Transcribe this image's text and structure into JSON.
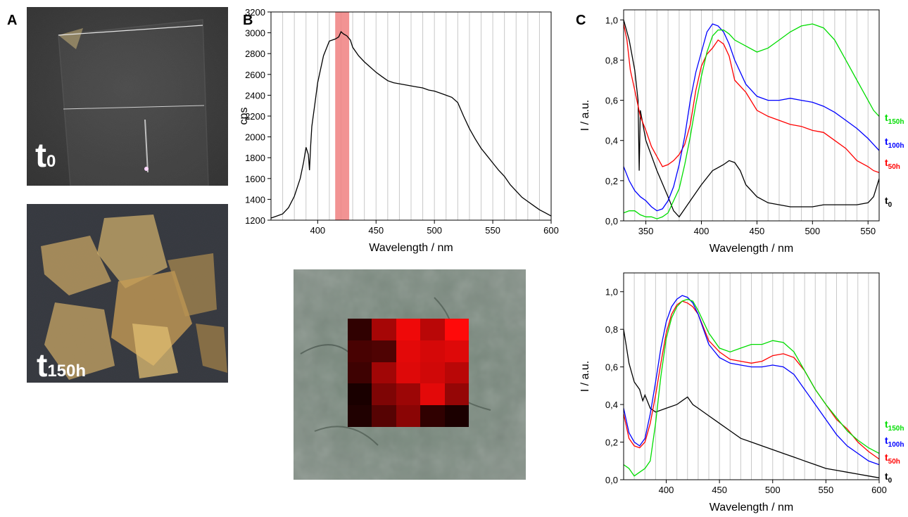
{
  "panels": {
    "a": {
      "letter": "A",
      "photo_top_label": {
        "main": "t",
        "sub": "0"
      },
      "photo_bottom_label": {
        "main": "t",
        "sub": "150h"
      }
    },
    "b": {
      "letter": "B"
    },
    "c": {
      "letter": "C"
    }
  },
  "colors": {
    "t0": "#000000",
    "t50h": "#ff0000",
    "t100h": "#0000ff",
    "t150h": "#00dd00",
    "highlight_band": "#f08080",
    "grid": "#c8c8c8"
  },
  "map": {
    "rows": 5,
    "cols": 5,
    "intensity": [
      [
        0.12,
        0.62,
        0.93,
        0.7,
        1.0
      ],
      [
        0.22,
        0.25,
        0.88,
        0.82,
        0.86
      ],
      [
        0.18,
        0.6,
        0.86,
        0.8,
        0.7
      ],
      [
        0.02,
        0.45,
        0.58,
        0.88,
        0.55
      ],
      [
        0.05,
        0.28,
        0.5,
        0.12,
        0.03
      ]
    ]
  },
  "chart_data": [
    {
      "type": "line",
      "id": "B",
      "xlabel": "Wavelength / nm",
      "ylabel": "cps",
      "xlim": [
        360,
        600
      ],
      "ylim": [
        1200,
        3200
      ],
      "xticks": [
        400,
        450,
        500,
        550,
        600
      ],
      "yticks": [
        1200,
        1400,
        1600,
        1800,
        2000,
        2200,
        2400,
        2600,
        2800,
        3000,
        3200
      ],
      "grid": "vertical every 10 nm",
      "highlight_band": [
        415,
        427
      ],
      "series": [
        {
          "key": "t0",
          "x": [
            360,
            365,
            370,
            375,
            380,
            385,
            388,
            390,
            392,
            393,
            394,
            395,
            398,
            400,
            405,
            410,
            415,
            418,
            420,
            422,
            425,
            428,
            430,
            435,
            440,
            445,
            450,
            455,
            460,
            465,
            470,
            475,
            480,
            485,
            490,
            495,
            500,
            505,
            510,
            515,
            520,
            525,
            530,
            535,
            540,
            545,
            550,
            555,
            560,
            565,
            570,
            575,
            580,
            585,
            590,
            595,
            600
          ],
          "values": [
            1220,
            1240,
            1260,
            1320,
            1430,
            1600,
            1760,
            1900,
            1830,
            1680,
            1920,
            2100,
            2350,
            2520,
            2780,
            2920,
            2940,
            2960,
            3010,
            2990,
            2970,
            2930,
            2860,
            2780,
            2720,
            2670,
            2620,
            2580,
            2540,
            2520,
            2510,
            2500,
            2490,
            2480,
            2470,
            2450,
            2440,
            2420,
            2400,
            2380,
            2330,
            2200,
            2080,
            1980,
            1890,
            1820,
            1750,
            1680,
            1620,
            1540,
            1480,
            1420,
            1380,
            1340,
            1300,
            1270,
            1240
          ]
        }
      ]
    },
    {
      "type": "line",
      "id": "C-top",
      "xlabel": "Wavelength / nm",
      "ylabel": "I / a.u.",
      "xlim": [
        330,
        560
      ],
      "ylim": [
        0,
        1.05
      ],
      "xticks": [
        350,
        400,
        450,
        500,
        550
      ],
      "xtick_labels": [
        "350",
        "400",
        "450",
        "500",
        "550"
      ],
      "yticks": [
        0,
        0.2,
        0.4,
        0.6,
        0.8,
        1.0
      ],
      "ytick_labels": [
        "0,0",
        "0,2",
        "0,4",
        "0,6",
        "0,8",
        "1,0"
      ],
      "grid": "vertical every 10 nm",
      "series": [
        {
          "key": "t0",
          "x": [
            330,
            335,
            340,
            343,
            344,
            345,
            350,
            360,
            370,
            375,
            380,
            385,
            390,
            395,
            400,
            410,
            420,
            425,
            430,
            435,
            440,
            450,
            460,
            470,
            480,
            490,
            500,
            510,
            520,
            530,
            540,
            550,
            555,
            560
          ],
          "values": [
            1.0,
            0.9,
            0.75,
            0.6,
            0.25,
            0.55,
            0.4,
            0.25,
            0.12,
            0.05,
            0.02,
            0.06,
            0.1,
            0.14,
            0.18,
            0.25,
            0.28,
            0.3,
            0.29,
            0.25,
            0.18,
            0.12,
            0.09,
            0.08,
            0.07,
            0.07,
            0.07,
            0.08,
            0.08,
            0.08,
            0.08,
            0.09,
            0.12,
            0.21
          ]
        },
        {
          "key": "t50h",
          "x": [
            330,
            333,
            336,
            340,
            345,
            350,
            355,
            360,
            365,
            370,
            375,
            380,
            385,
            390,
            395,
            400,
            405,
            410,
            415,
            420,
            425,
            430,
            440,
            450,
            460,
            470,
            480,
            490,
            500,
            510,
            520,
            530,
            540,
            550,
            555,
            560
          ],
          "values": [
            0.98,
            0.9,
            0.75,
            0.65,
            0.52,
            0.45,
            0.37,
            0.32,
            0.27,
            0.28,
            0.3,
            0.33,
            0.38,
            0.48,
            0.65,
            0.77,
            0.83,
            0.86,
            0.9,
            0.88,
            0.82,
            0.7,
            0.64,
            0.55,
            0.52,
            0.5,
            0.48,
            0.47,
            0.45,
            0.44,
            0.4,
            0.36,
            0.3,
            0.27,
            0.25,
            0.24
          ]
        },
        {
          "key": "t100h",
          "x": [
            330,
            335,
            340,
            345,
            350,
            355,
            360,
            365,
            370,
            375,
            380,
            385,
            390,
            395,
            400,
            405,
            410,
            415,
            420,
            425,
            430,
            440,
            450,
            460,
            470,
            480,
            490,
            500,
            510,
            520,
            530,
            540,
            550,
            555,
            560
          ],
          "values": [
            0.27,
            0.2,
            0.15,
            0.12,
            0.1,
            0.07,
            0.05,
            0.06,
            0.1,
            0.17,
            0.28,
            0.42,
            0.6,
            0.74,
            0.84,
            0.94,
            0.98,
            0.97,
            0.94,
            0.88,
            0.8,
            0.68,
            0.62,
            0.6,
            0.6,
            0.61,
            0.6,
            0.59,
            0.57,
            0.54,
            0.5,
            0.46,
            0.41,
            0.38,
            0.35
          ]
        },
        {
          "key": "t150h",
          "x": [
            330,
            335,
            340,
            345,
            350,
            355,
            360,
            365,
            370,
            375,
            380,
            385,
            390,
            395,
            400,
            405,
            410,
            415,
            420,
            425,
            430,
            440,
            450,
            460,
            470,
            480,
            490,
            500,
            505,
            510,
            520,
            530,
            540,
            550,
            555,
            560
          ],
          "values": [
            0.04,
            0.05,
            0.05,
            0.03,
            0.02,
            0.02,
            0.01,
            0.02,
            0.04,
            0.1,
            0.16,
            0.28,
            0.42,
            0.58,
            0.72,
            0.84,
            0.92,
            0.95,
            0.95,
            0.93,
            0.9,
            0.87,
            0.84,
            0.86,
            0.9,
            0.94,
            0.97,
            0.98,
            0.97,
            0.96,
            0.9,
            0.8,
            0.7,
            0.6,
            0.55,
            0.52
          ]
        }
      ]
    },
    {
      "type": "line",
      "id": "C-bottom",
      "xlabel": "Wavelength / nm",
      "ylabel": "I / a.u.",
      "xlim": [
        360,
        600
      ],
      "ylim": [
        0,
        1.1
      ],
      "xticks": [
        400,
        450,
        500,
        550,
        600
      ],
      "xtick_labels": [
        "400",
        "450",
        "500",
        "550",
        "600"
      ],
      "yticks": [
        0,
        0.2,
        0.4,
        0.6,
        0.8,
        1.0
      ],
      "ytick_labels": [
        "0,0",
        "0,2",
        "0,4",
        "0,6",
        "0,8",
        "1,0"
      ],
      "grid": "vertical every 10 nm",
      "series": [
        {
          "key": "t0",
          "x": [
            360,
            365,
            370,
            375,
            378,
            380,
            385,
            390,
            400,
            410,
            415,
            420,
            425,
            430,
            440,
            450,
            460,
            470,
            480,
            490,
            500,
            510,
            520,
            530,
            540,
            550,
            560,
            570,
            580,
            590,
            600
          ],
          "values": [
            0.8,
            0.62,
            0.52,
            0.48,
            0.42,
            0.45,
            0.38,
            0.36,
            0.38,
            0.4,
            0.42,
            0.44,
            0.4,
            0.38,
            0.34,
            0.3,
            0.26,
            0.22,
            0.2,
            0.18,
            0.16,
            0.14,
            0.12,
            0.1,
            0.08,
            0.06,
            0.05,
            0.04,
            0.03,
            0.02,
            0.01
          ]
        },
        {
          "key": "t50h",
          "x": [
            360,
            365,
            370,
            375,
            380,
            385,
            390,
            395,
            400,
            405,
            410,
            415,
            420,
            425,
            430,
            440,
            450,
            460,
            470,
            480,
            490,
            500,
            510,
            520,
            530,
            540,
            550,
            560,
            570,
            580,
            590,
            600
          ],
          "values": [
            0.35,
            0.22,
            0.18,
            0.17,
            0.2,
            0.3,
            0.45,
            0.62,
            0.78,
            0.88,
            0.93,
            0.95,
            0.94,
            0.92,
            0.88,
            0.74,
            0.68,
            0.64,
            0.63,
            0.62,
            0.63,
            0.66,
            0.67,
            0.65,
            0.58,
            0.48,
            0.4,
            0.32,
            0.27,
            0.2,
            0.15,
            0.11
          ]
        },
        {
          "key": "t100h",
          "x": [
            360,
            365,
            370,
            375,
            380,
            385,
            390,
            395,
            400,
            405,
            410,
            415,
            420,
            425,
            430,
            440,
            450,
            460,
            470,
            480,
            490,
            500,
            510,
            520,
            530,
            540,
            550,
            560,
            570,
            580,
            590,
            600
          ],
          "values": [
            0.38,
            0.25,
            0.2,
            0.18,
            0.22,
            0.35,
            0.52,
            0.7,
            0.84,
            0.92,
            0.96,
            0.98,
            0.97,
            0.94,
            0.88,
            0.72,
            0.65,
            0.62,
            0.61,
            0.6,
            0.6,
            0.61,
            0.6,
            0.56,
            0.48,
            0.4,
            0.32,
            0.24,
            0.18,
            0.14,
            0.1,
            0.08
          ]
        },
        {
          "key": "t150h",
          "x": [
            360,
            365,
            370,
            375,
            380,
            385,
            390,
            395,
            400,
            405,
            410,
            415,
            420,
            425,
            430,
            440,
            450,
            460,
            470,
            480,
            490,
            500,
            510,
            520,
            530,
            540,
            550,
            560,
            570,
            580,
            590,
            600
          ],
          "values": [
            0.08,
            0.06,
            0.02,
            0.04,
            0.06,
            0.1,
            0.3,
            0.55,
            0.75,
            0.86,
            0.92,
            0.95,
            0.96,
            0.95,
            0.9,
            0.78,
            0.7,
            0.68,
            0.7,
            0.72,
            0.72,
            0.74,
            0.73,
            0.68,
            0.58,
            0.48,
            0.4,
            0.33,
            0.26,
            0.21,
            0.17,
            0.14
          ]
        }
      ],
      "series_labels": {
        "t150h": {
          "main": "t",
          "sub": "150h"
        },
        "t100h": {
          "main": "t",
          "sub": "100h"
        },
        "t50h": {
          "main": "t",
          "sub": "50h"
        },
        "t0": {
          "main": "t",
          "sub": "0"
        }
      }
    }
  ]
}
